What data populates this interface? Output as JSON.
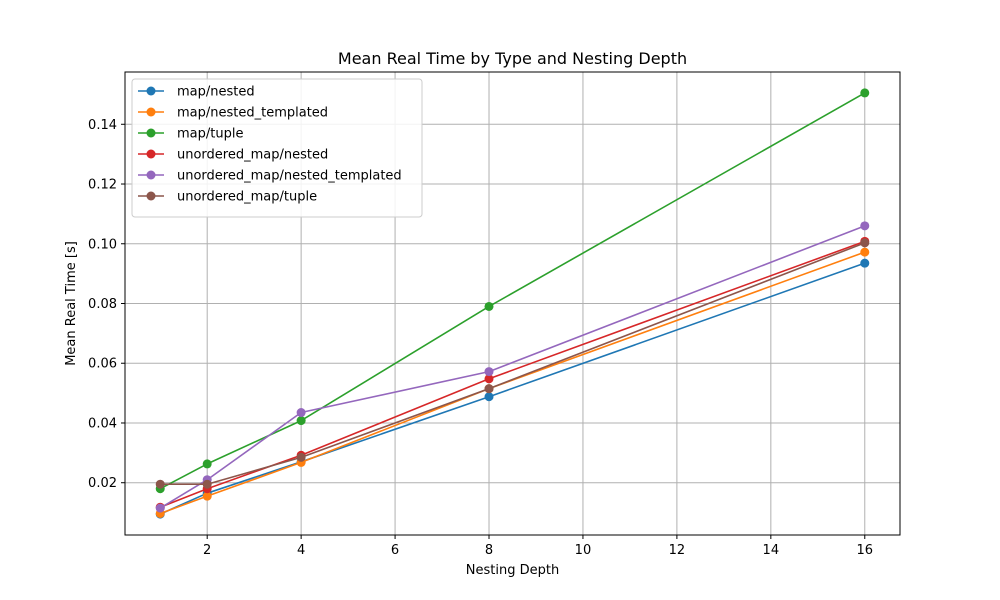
{
  "chart_data": {
    "type": "line",
    "title": "Mean Real Time by Type and Nesting Depth",
    "xlabel": "Nesting Depth",
    "ylabel": "Mean Real Time [s]",
    "xlim": [
      0.25,
      16.75
    ],
    "ylim": [
      0.0025,
      0.1575
    ],
    "xticks": [
      2,
      4,
      6,
      8,
      10,
      12,
      14,
      16
    ],
    "yticks": [
      0.02,
      0.04,
      0.06,
      0.08,
      0.1,
      0.12,
      0.14
    ],
    "ytick_labels": [
      "0.02",
      "0.04",
      "0.06",
      "0.08",
      "0.10",
      "0.12",
      "0.14"
    ],
    "grid": true,
    "legend_position": "top-left",
    "x": [
      1,
      2,
      4,
      8,
      16
    ],
    "series": [
      {
        "name": "map/nested",
        "color": "#1f77b4",
        "values": [
          0.0095,
          0.0165,
          0.027,
          0.0488,
          0.0935
        ]
      },
      {
        "name": "map/nested_templated",
        "color": "#ff7f0e",
        "values": [
          0.0097,
          0.0155,
          0.0268,
          0.0515,
          0.0972
        ]
      },
      {
        "name": "map/tuple",
        "color": "#2ca02c",
        "values": [
          0.018,
          0.0263,
          0.0408,
          0.079,
          0.1505
        ]
      },
      {
        "name": "unordered_map/nested",
        "color": "#d62728",
        "values": [
          0.0118,
          0.018,
          0.0292,
          0.0548,
          0.1008
        ]
      },
      {
        "name": "unordered_map/nested_templated",
        "color": "#9467bd",
        "values": [
          0.0115,
          0.021,
          0.0435,
          0.0572,
          0.106
        ]
      },
      {
        "name": "unordered_map/tuple",
        "color": "#8c564b",
        "values": [
          0.0195,
          0.0195,
          0.0285,
          0.0515,
          0.1003
        ]
      }
    ]
  }
}
